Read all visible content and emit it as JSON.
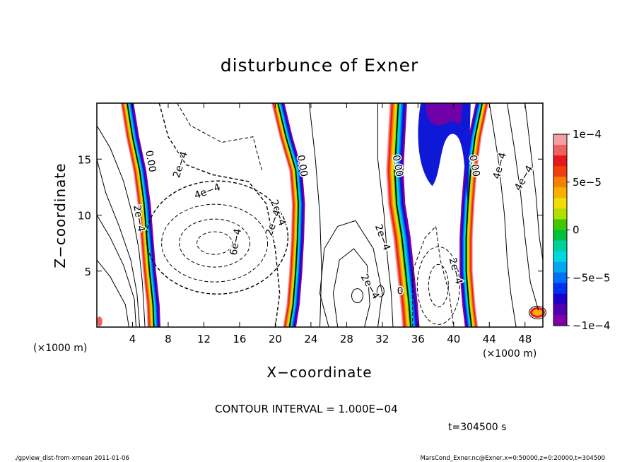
{
  "chart_data": {
    "type": "heatmap",
    "title": "disturbunce of Exner",
    "xlabel": "X−coordinate",
    "ylabel": "Z−coordinate",
    "x_unit": "(×1000 m)",
    "y_unit": "(×1000 m)",
    "xlim": [
      0,
      50
    ],
    "ylim": [
      0,
      20
    ],
    "x_ticks": [
      "4",
      "8",
      "12",
      "16",
      "20",
      "24",
      "28",
      "32",
      "36",
      "40",
      "44",
      "48"
    ],
    "y_ticks": [
      "5",
      "10",
      "15"
    ],
    "x_tick_values": [
      4,
      8,
      12,
      16,
      20,
      24,
      28,
      32,
      36,
      40,
      44,
      48
    ],
    "y_tick_values": [
      5,
      10,
      15
    ],
    "colorbar": {
      "min": -0.0001,
      "max": 0.0001,
      "labels": [
        "1e−4",
        "5e−5",
        "0",
        "−5e−5",
        "−1e−4"
      ],
      "label_values": [
        0.0001,
        5e-05,
        0,
        -5e-05,
        -0.0001
      ],
      "colors": [
        "#f4a0a0",
        "#f06060",
        "#e81818",
        "#f04010",
        "#f88000",
        "#f8b000",
        "#f0e000",
        "#b0e000",
        "#40c800",
        "#00c040",
        "#00d0a0",
        "#00d8e0",
        "#00a8f0",
        "#0070f8",
        "#0030f0",
        "#2000c8",
        "#5000b0",
        "#8000a8"
      ]
    },
    "contour_labels": [
      "0.00",
      "0.00",
      "0.00",
      "0.00",
      "2e−4",
      "2e−4",
      "4e−4",
      "6e−4",
      "2e−4",
      "2e−4",
      "2e−4",
      "2e−4",
      "4e−4",
      "0",
      "2e−4",
      "4e−4"
    ],
    "contour_interval": "CONTOUR INTERVAL = 1.000E−04",
    "time": "t=304500 s"
  },
  "footer": {
    "left": "./gpview_dist-from-xmean  2011-01-06",
    "right": "MarsCond_Exner.nc@Exner,x=0:50000,z=0:20000,t=304500"
  }
}
